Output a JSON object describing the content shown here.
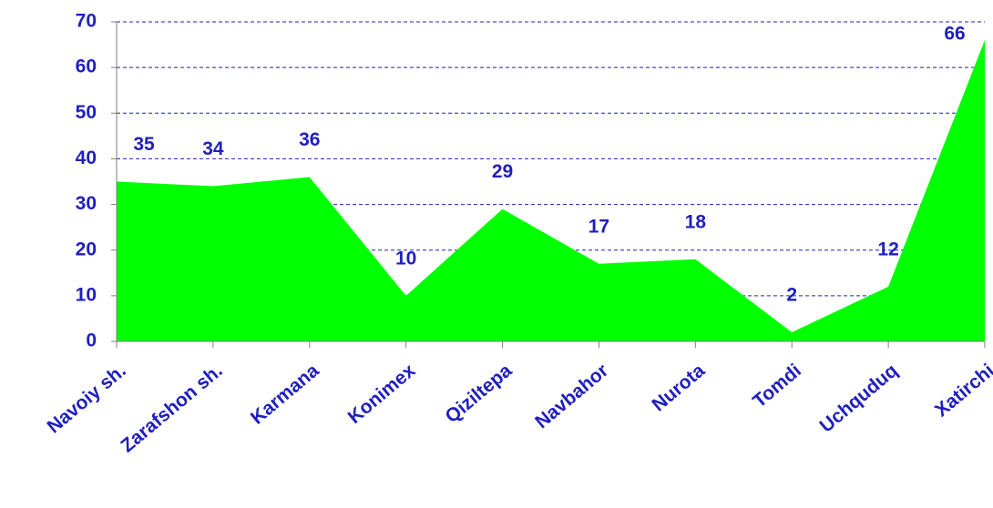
{
  "chart_data": {
    "type": "area",
    "categories": [
      "Navoiy sh.",
      "Zarafshon sh.",
      "Karmana",
      "Konimex",
      "Qiziltepa",
      "Navbahor",
      "Nurota",
      "Tomdi",
      "Uchquduq",
      "Xatirchi"
    ],
    "values": [
      35,
      34,
      36,
      10,
      29,
      17,
      18,
      2,
      12,
      66
    ],
    "color": "#00ff00",
    "ylim": [
      0,
      70
    ],
    "yticks": [
      0,
      10,
      20,
      30,
      40,
      50,
      60,
      70
    ],
    "grid": true
  }
}
